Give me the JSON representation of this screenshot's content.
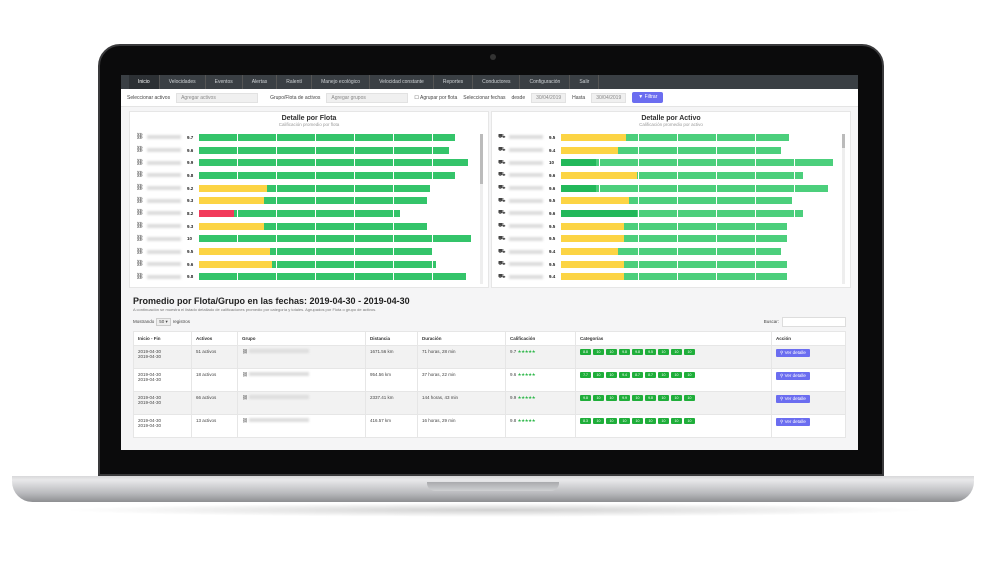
{
  "nav": [
    "Inicio",
    "Velocidades",
    "Eventos",
    "Alertas",
    "Ralentí",
    "Manejo ecológico",
    "Velocidad constante",
    "Reportes",
    "Conductores",
    "Configuración",
    "Salir"
  ],
  "filters": {
    "select_assets_label": "Seleccionar activos",
    "assets_placeholder": "Agregar activos",
    "group_label": "Grupo/Flota de activos",
    "group_placeholder": "Agregar grupos",
    "group_by_fleet": "Agrupar por flota",
    "select_dates": "Seleccionar fechas",
    "from_label": "desde",
    "from_value": "30/04/2019",
    "to_label": "Hasta",
    "to_value": "30/04/2019",
    "filter_button": "Filtrar"
  },
  "colors": {
    "green": "#34c46a",
    "yellow": "#fcd444",
    "red": "#f23a5a",
    "darkgreen": "#22b85a",
    "accent": "#6b6df0"
  },
  "chart_data": [
    {
      "type": "bar",
      "title": "Detalle por Flota",
      "subtitle": "Calificación promedio por flota",
      "values": [
        9.7,
        9.6,
        9.9,
        9.8,
        9.2,
        9.3,
        8.2,
        9.3,
        10,
        9.5,
        9.6,
        9.8
      ],
      "bar_length": [
        0.94,
        0.92,
        0.99,
        0.94,
        0.85,
        0.84,
        0.74,
        0.84,
        1,
        0.86,
        0.87,
        0.98
      ],
      "first_segment": [
        [
          0,
          "green"
        ],
        [
          0,
          "green"
        ],
        [
          0,
          "green"
        ],
        [
          0,
          "green"
        ],
        [
          0.25,
          "yellow"
        ],
        [
          0.24,
          "yellow"
        ],
        [
          0.13,
          "red"
        ],
        [
          0.24,
          "yellow"
        ],
        [
          0,
          "green"
        ],
        [
          0.26,
          "yellow"
        ],
        [
          0.27,
          "yellow"
        ],
        [
          0,
          "green"
        ]
      ]
    },
    {
      "type": "bar",
      "title": "Detalle por Activo",
      "subtitle": "Calificación promedio por activo",
      "values": [
        9.5,
        9.4,
        10,
        9.6,
        9.6,
        9.5,
        9.6,
        9.5,
        9.5,
        9.4,
        9.5,
        9.4
      ],
      "bar_length": [
        0.84,
        0.81,
        1,
        0.89,
        0.98,
        0.85,
        0.89,
        0.83,
        0.83,
        0.81,
        0.83,
        0.83
      ],
      "first_segment": [
        [
          0.24,
          "yellow"
        ],
        [
          0.21,
          "yellow"
        ],
        [
          0.13,
          "darkgreen"
        ],
        [
          0.28,
          "yellow"
        ],
        [
          0.13,
          "darkgreen"
        ],
        [
          0.25,
          "yellow"
        ],
        [
          0.28,
          "darkgreen"
        ],
        [
          0.23,
          "yellow"
        ],
        [
          0.23,
          "yellow"
        ],
        [
          0.21,
          "yellow"
        ],
        [
          0.23,
          "yellow"
        ],
        [
          0.23,
          "yellow"
        ]
      ]
    }
  ],
  "table": {
    "title": "Promedio por Flota/Grupo en las fechas: 2019-04-30 - 2019-04-30",
    "description": "A continuación se muestra el listado detallado de calificaciones promedio por categoría y totales. Agrupados por Flota o grupo de activos.",
    "showing": "Mostrando",
    "page_size": "50",
    "records": "registros",
    "search_label": "Buscar:",
    "headers": [
      "Inicio - Fin",
      "Activos",
      "Grupo",
      "Distancia",
      "Duración",
      "Calificación",
      "Categorías",
      "Acción"
    ],
    "action_label": "Ver detalle",
    "rows": [
      {
        "start": "2019-04-30",
        "end": "2019-04-30",
        "assets": "51 activos",
        "distance": "1671.56 km",
        "duration": "71 horas, 28 min",
        "rating": "9.7",
        "categories": [
          "8.8",
          "10",
          "10",
          "9.8",
          "9.8",
          "9.5",
          "10",
          "10",
          "10"
        ]
      },
      {
        "start": "2019-04-30",
        "end": "2019-04-30",
        "assets": "18 activos",
        "distance": "954.56 km",
        "duration": "37 horas, 22 min",
        "rating": "9.6",
        "categories": [
          "7.7",
          "10",
          "10",
          "9.4",
          "8.7",
          "8.7",
          "10",
          "10",
          "10"
        ]
      },
      {
        "start": "2019-04-30",
        "end": "2019-04-30",
        "assets": "66 activos",
        "distance": "2337.41 km",
        "duration": "144 horas, 43 min",
        "rating": "9.9",
        "categories": [
          "9.8",
          "10",
          "10",
          "9.9",
          "10",
          "9.8",
          "10",
          "10",
          "10"
        ]
      },
      {
        "start": "2019-04-30",
        "end": "2019-04-30",
        "assets": "13 activos",
        "distance": "416.57 km",
        "duration": "16 horas, 29 min",
        "rating": "9.8",
        "categories": [
          "8.3",
          "10",
          "10",
          "10",
          "10",
          "10",
          "10",
          "10",
          "10"
        ]
      }
    ]
  }
}
